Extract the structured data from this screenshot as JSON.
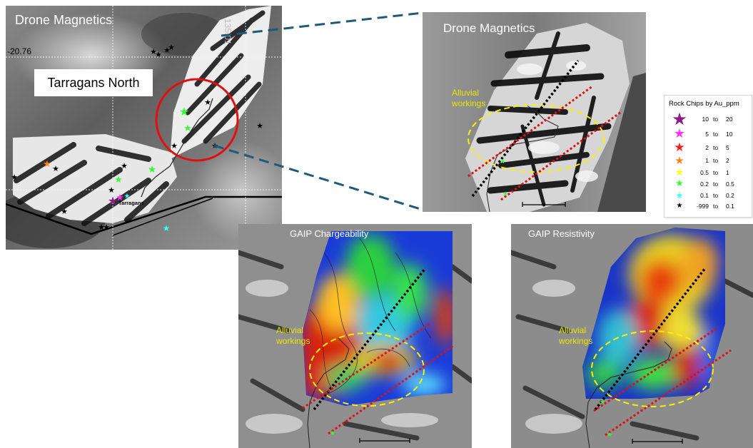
{
  "panels": {
    "overview": {
      "title": "Drone Magnetics",
      "lat_label": "-20.76",
      "lon_label": "135.01",
      "region_label": "Tarragans North",
      "place_label": "Tarragans"
    },
    "magnetics": {
      "title": "Drone Magnetics",
      "annotation": "Alluvial workings"
    },
    "chargeability": {
      "title": "GAIP Chargeability",
      "annotation": "Alluvial workings"
    },
    "resistivity": {
      "title": "GAIP Resistivity",
      "annotation": "Alluvial workings"
    }
  },
  "legend": {
    "title": "Rock Chips by Au_ppm",
    "items": [
      {
        "from": "10",
        "to_word": "to",
        "to": "20",
        "color": "#8b1a8b"
      },
      {
        "from": "5",
        "to_word": "to",
        "to": "10",
        "color": "#ff33ff"
      },
      {
        "from": "2",
        "to_word": "to",
        "to": "5",
        "color": "#ff1a1a"
      },
      {
        "from": "1",
        "to_word": "to",
        "to": "2",
        "color": "#ff7f1a"
      },
      {
        "from": "0.5",
        "to_word": "to",
        "to": "1",
        "color": "#ffff1a"
      },
      {
        "from": "0.2",
        "to_word": "to",
        "to": "0.5",
        "color": "#33ff33"
      },
      {
        "from": "0.1",
        "to_word": "to",
        "to": "0.2",
        "color": "#33ffff"
      },
      {
        "from": "-999",
        "to_word": "to",
        "to": "0.1",
        "color": "#000000"
      }
    ]
  },
  "colors": {
    "highlight_circle": "#e01010",
    "connector_line": "#1f5a7a",
    "workings_ellipse": "#ffee00",
    "trend_line_black": "#000000",
    "trend_line_red": "#e01010",
    "annotation_text": "#e8e600"
  }
}
